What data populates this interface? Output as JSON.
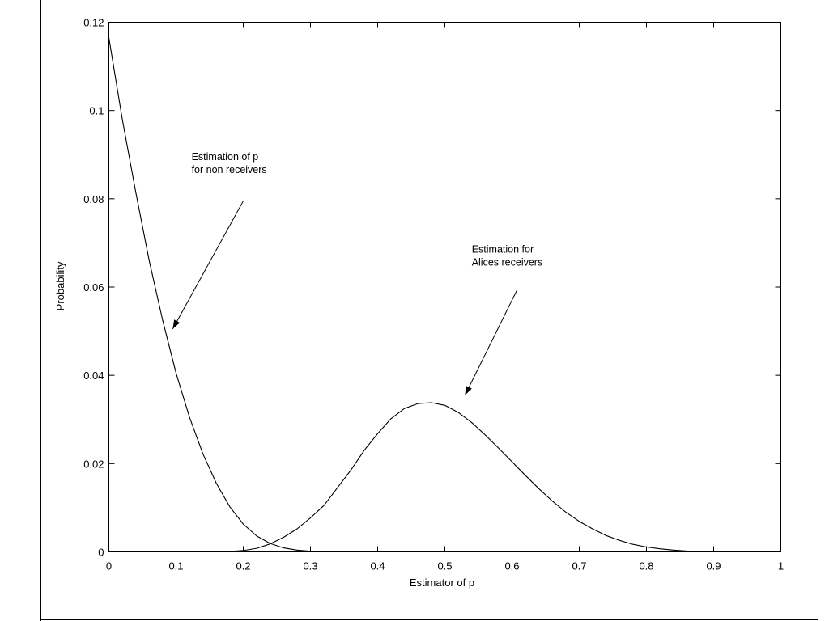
{
  "figure": {
    "border_color": "#000000",
    "background": "#ffffff"
  },
  "chart_data": {
    "type": "line",
    "title": "",
    "xlabel": "Estimator of p",
    "ylabel": "Probability",
    "xlim": [
      0,
      1
    ],
    "ylim": [
      0,
      0.12
    ],
    "xticks": [
      0,
      0.1,
      0.2,
      0.3,
      0.4,
      0.5,
      0.6,
      0.7,
      0.8,
      0.9,
      1
    ],
    "xtick_labels": [
      "0",
      "0.1",
      "0.2",
      "0.3",
      "0.4",
      "0.5",
      "0.6",
      "0.7",
      "0.8",
      "0.9",
      "1"
    ],
    "yticks": [
      0,
      0.02,
      0.04,
      0.06,
      0.08,
      0.1,
      0.12
    ],
    "ytick_labels": [
      "0",
      "0.02",
      "0.04",
      "0.06",
      "0.08",
      "0.1",
      "0.12"
    ],
    "grid": false,
    "legend": "none",
    "line_color": "#000000",
    "series": [
      {
        "x": [
          0,
          0.02,
          0.04,
          0.06,
          0.08,
          0.1,
          0.12,
          0.14,
          0.16,
          0.18,
          0.2,
          0.22,
          0.24,
          0.26,
          0.28,
          0.3,
          0.32,
          0.34
        ],
        "values": [
          0.1165,
          0.098,
          0.0815,
          0.066,
          0.0525,
          0.0405,
          0.0305,
          0.0222,
          0.0155,
          0.0102,
          0.0063,
          0.0036,
          0.0019,
          0.0009,
          0.0004,
          0.00015,
          5e-05,
          0.0
        ]
      },
      {
        "x": [
          0.17,
          0.2,
          0.22,
          0.24,
          0.26,
          0.28,
          0.3,
          0.32,
          0.34,
          0.36,
          0.38,
          0.4,
          0.42,
          0.44,
          0.46,
          0.48,
          0.5,
          0.52,
          0.54,
          0.56,
          0.58,
          0.6,
          0.62,
          0.64,
          0.66,
          0.68,
          0.7,
          0.72,
          0.74,
          0.76,
          0.78,
          0.8,
          0.82,
          0.84,
          0.86,
          0.88,
          0.91
        ],
        "values": [
          0.0,
          0.0003,
          0.0008,
          0.0018,
          0.0033,
          0.0052,
          0.0077,
          0.0105,
          0.0145,
          0.0185,
          0.023,
          0.0268,
          0.0302,
          0.0325,
          0.0336,
          0.0338,
          0.0332,
          0.0316,
          0.0293,
          0.0265,
          0.0235,
          0.0204,
          0.0173,
          0.0143,
          0.0115,
          0.009,
          0.0069,
          0.0052,
          0.0037,
          0.0026,
          0.0017,
          0.0011,
          0.0007,
          0.0004,
          0.0002,
          0.0001,
          0.0
        ]
      }
    ],
    "annotations": [
      {
        "lines": [
          "Estimation of p",
          "for non receivers"
        ],
        "text_at": [
          0.123,
          0.0888
        ],
        "arrow_from": [
          0.2,
          0.0795
        ],
        "arrow_to": [
          0.095,
          0.0505
        ]
      },
      {
        "lines": [
          "Estimation for",
          "Alices receivers"
        ],
        "text_at": [
          0.54,
          0.0678
        ],
        "arrow_from": [
          0.607,
          0.0592
        ],
        "arrow_to": [
          0.53,
          0.0355
        ]
      }
    ]
  }
}
